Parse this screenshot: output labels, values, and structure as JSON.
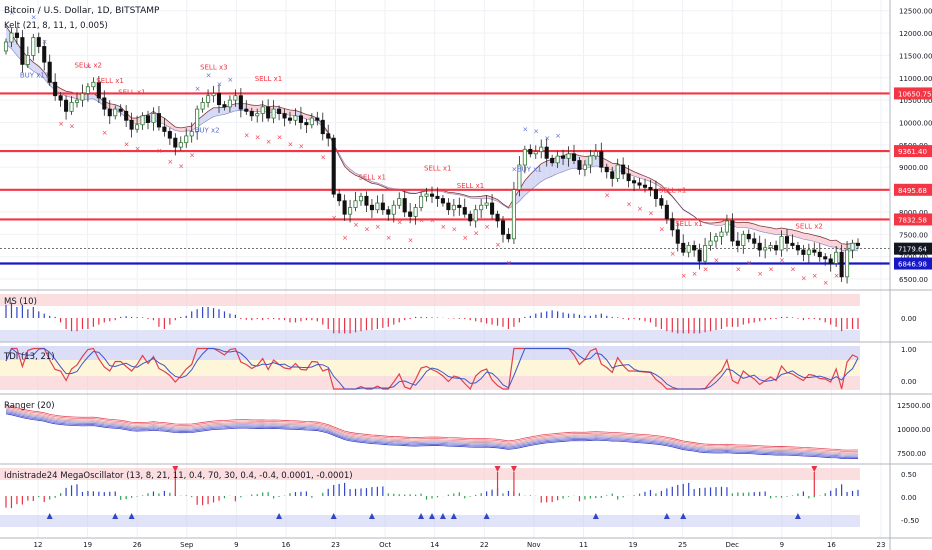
{
  "header": {
    "symbol_title": "Bitcoin / U.S. Dollar, 1D, BITSTAMP",
    "kelt_label": "Kelt (21, 8, 11, 1, 0.005)"
  },
  "theme": {
    "bull": "#2e7d32",
    "bear": "#111111",
    "level_red": "#f23645",
    "level_blue": "#1717c8",
    "buy_color": "#5b6bd6",
    "sell_color": "#f23645"
  },
  "chart_data": [
    {
      "type": "candlestick",
      "title": "Bitcoin / U.S. Dollar, 1D, BITSTAMP",
      "y_ticks": [
        "12500.00",
        "12000.00",
        "11500.00",
        "11000.00",
        "10500.00",
        "10000.00",
        "9500.00",
        "9000.00",
        "8500.00",
        "8000.00",
        "7500.00",
        "7000.00",
        "6500.00"
      ],
      "ylim": [
        6300,
        12650
      ],
      "x_ticks": [
        "12",
        "19",
        "26",
        "Sep",
        "9",
        "16",
        "23",
        "Oct",
        "14",
        "22",
        "Nov",
        "11",
        "19",
        "25",
        "Dec",
        "9",
        "16",
        "23"
      ],
      "horizontal_levels": [
        {
          "label": "10650.75",
          "value": 10650.75,
          "color": "red"
        },
        {
          "label": "9361.40",
          "value": 9361.4,
          "color": "red"
        },
        {
          "label": "8495.68",
          "value": 8495.68,
          "color": "red"
        },
        {
          "label": "7832.58",
          "value": 7832.58,
          "color": "red"
        },
        {
          "label": "6846.98",
          "value": 6846.98,
          "color": "blue"
        }
      ],
      "last_price": "7179.64",
      "close": [
        11800,
        12000,
        11900,
        11300,
        11500,
        11900,
        11700,
        11350,
        10900,
        10600,
        10500,
        10250,
        10450,
        10500,
        10650,
        10800,
        10900,
        10550,
        10300,
        10150,
        10300,
        10250,
        10050,
        9850,
        9950,
        10150,
        10000,
        10200,
        9900,
        9800,
        9650,
        9450,
        9550,
        9700,
        9800,
        10300,
        10450,
        10600,
        10650,
        10400,
        10350,
        10500,
        10600,
        10300,
        10250,
        10150,
        10200,
        10350,
        10100,
        10300,
        10200,
        10100,
        10050,
        10150,
        10000,
        9950,
        10100,
        10050,
        9750,
        9650,
        8400,
        8250,
        7950,
        8100,
        8250,
        8350,
        8150,
        8050,
        8200,
        8050,
        7950,
        8150,
        8300,
        8000,
        7900,
        8100,
        8350,
        8400,
        8350,
        8300,
        8200,
        8050,
        8150,
        8100,
        7950,
        7800,
        8050,
        8150,
        8200,
        7950,
        7800,
        7500,
        7400,
        8500,
        9050,
        9400,
        9300,
        9350,
        9450,
        9200,
        9100,
        9250,
        9200,
        9300,
        9150,
        8950,
        9050,
        9250,
        9350,
        9000,
        8900,
        8750,
        9050,
        8850,
        8700,
        8650,
        8600,
        8550,
        8500,
        8300,
        8150,
        7850,
        7600,
        7300,
        7100,
        7250,
        7150,
        6900,
        7250,
        7350,
        7450,
        7550,
        7800,
        7350,
        7250,
        7500,
        7400,
        7300,
        7150,
        7200,
        7250,
        7150,
        7450,
        7300,
        7250,
        7150,
        7050,
        7150,
        7100,
        7000,
        6950,
        6850,
        7100,
        6550,
        7150,
        7300,
        7250
      ],
      "bands_top": [
        12150,
        11980,
        11780,
        11600,
        11460,
        11350,
        11260,
        11130,
        10950,
        10830,
        10760,
        10700,
        10680,
        10640,
        10620,
        10640,
        10650,
        10560,
        10470,
        10420,
        10400,
        10350,
        10220,
        10100,
        10100,
        10150,
        10170,
        10250,
        10160,
        10100,
        10000,
        9900,
        9880,
        9900,
        9920,
        10050,
        10150,
        10250,
        10330,
        10330,
        10340,
        10380,
        10420,
        10420,
        10420,
        10390,
        10380,
        10400,
        10350,
        10370,
        10350,
        10310,
        10280,
        10270,
        10230,
        10180,
        10150,
        10100,
        9950,
        9780,
        9500,
        9250,
        9020,
        8900,
        8820,
        8770,
        8700,
        8640,
        8620,
        8570,
        8520,
        8500,
        8500,
        8450,
        8410,
        8410,
        8450,
        8480,
        8500,
        8500,
        8480,
        8440,
        8430,
        8410,
        8380,
        8340,
        8340,
        8350,
        8370,
        8330,
        8280,
        8180,
        8100,
        8300,
        8500,
        8700,
        8840,
        8960,
        9080,
        9140,
        9180,
        9230,
        9260,
        9300,
        9300,
        9260,
        9240,
        9250,
        9270,
        9220,
        9160,
        9090,
        9080,
        9020,
        8960,
        8900,
        8850,
        8800,
        8750,
        8680,
        8600,
        8480,
        8350,
        8200,
        8050,
        7980,
        7900,
        7800,
        7760,
        7750,
        7760,
        7780,
        7840,
        7790,
        7760,
        7770,
        7760,
        7730,
        7690,
        7670,
        7650,
        7620,
        7640,
        7620,
        7600,
        7570,
        7530,
        7510,
        7480,
        7450,
        7410,
        7360,
        7370,
        7290,
        7280,
        7300,
        7300
      ],
      "bands_mid": [
        11750,
        11650,
        11500,
        11360,
        11240,
        11150,
        11080,
        10980,
        10830,
        10720,
        10650,
        10590,
        10560,
        10530,
        10510,
        10520,
        10530,
        10460,
        10370,
        10300,
        10260,
        10210,
        10110,
        10000,
        9970,
        9990,
        10000,
        10060,
        10000,
        9960,
        9890,
        9820,
        9800,
        9810,
        9820,
        9900,
        9980,
        10060,
        10130,
        10160,
        10180,
        10220,
        10260,
        10270,
        10270,
        10250,
        10240,
        10250,
        10220,
        10230,
        10220,
        10190,
        10160,
        10150,
        10120,
        10080,
        10060,
        10020,
        9900,
        9760,
        9520,
        9300,
        9080,
        8960,
        8870,
        8810,
        8740,
        8680,
        8650,
        8600,
        8550,
        8520,
        8510,
        8470,
        8430,
        8420,
        8440,
        8460,
        8470,
        8470,
        8450,
        8410,
        8400,
        8380,
        8350,
        8310,
        8300,
        8300,
        8310,
        8280,
        8240,
        8160,
        8080,
        8140,
        8240,
        8370,
        8480,
        8580,
        8680,
        8750,
        8800,
        8860,
        8900,
        8950,
        8980,
        8970,
        8970,
        9000,
        9030,
        9010,
        8980,
        8930,
        8930,
        8890,
        8850,
        8800,
        8760,
        8720,
        8680,
        8620,
        8550,
        8450,
        8340,
        8200,
        8060,
        7980,
        7900,
        7800,
        7750,
        7720,
        7700,
        7700,
        7730,
        7690,
        7650,
        7650,
        7640,
        7610,
        7570,
        7540,
        7520,
        7490,
        7500,
        7480,
        7460,
        7430,
        7390,
        7370,
        7340,
        7300,
        7260,
        7220,
        7210,
        7140,
        7120,
        7130,
        7130
      ],
      "buy_labels": [
        "BUY x11",
        "BUY x2",
        "BUY x1"
      ],
      "sell_labels": [
        "SELL x2",
        "SELL x1",
        "SELL x1",
        "SELL x3",
        "SELL x1",
        "SELL x1",
        "SELL x1",
        "SELL x1",
        "SELL x1",
        "SELL x1",
        "SELL x2"
      ]
    },
    {
      "type": "bar",
      "title": "MS (10)",
      "y_ticks": [
        "0.00"
      ],
      "ylim": [
        -1,
        1
      ],
      "values": [
        0.6,
        0.7,
        0.5,
        0.6,
        0.4,
        0.5,
        0.3,
        0.2,
        0.1,
        0.05,
        -0.2,
        -0.5,
        -0.6,
        -0.6,
        -0.5,
        -0.5,
        -0.4,
        -0.3,
        -0.2,
        -0.15,
        -0.1,
        0.05,
        0.08,
        0.05,
        0.04,
        0.03,
        -0.05,
        -0.1,
        -0.4,
        -0.5,
        -0.3,
        -0.1,
        0.05,
        0.1,
        0.3,
        0.4,
        0.5,
        0.5,
        0.45,
        0.4,
        0.3,
        0.2,
        0.15,
        -0.05,
        -0.08,
        -0.1,
        -0.05,
        -0.1,
        -0.05,
        -0.05,
        -0.08,
        -0.1,
        -0.2,
        -0.2,
        -0.15,
        -0.1,
        -0.1,
        -0.15,
        -0.3,
        -0.5,
        -0.7,
        -0.7,
        -0.7,
        -0.7,
        -0.65,
        -0.6,
        -0.55,
        -0.55,
        -0.5,
        -0.45,
        -0.4,
        -0.3,
        -0.2,
        -0.1,
        -0.05,
        0.05,
        0.05,
        0.04,
        0.03,
        0.02,
        0.01,
        -0.02,
        -0.03,
        -0.04,
        -0.05,
        -0.1,
        -0.15,
        -0.2,
        -0.25,
        -0.3,
        -0.35,
        -0.4,
        -0.5,
        -0.4,
        -0.2,
        0.05,
        0.1,
        0.2,
        0.25,
        0.3,
        0.35,
        0.3,
        0.25,
        0.2,
        0.2,
        0.15,
        0.1,
        0.1,
        0.15,
        0.2,
        0.1,
        0.05,
        0.03,
        -0.05,
        -0.08,
        -0.05,
        -0.1,
        -0.15,
        -0.2,
        -0.4,
        -0.5,
        -0.6,
        -0.65,
        -0.7,
        -0.7,
        -0.7,
        -0.7,
        -0.7,
        -0.65,
        -0.6,
        -0.55,
        -0.5,
        -0.4,
        -0.4,
        -0.4,
        -0.3,
        -0.25,
        -0.2,
        -0.15,
        -0.1,
        -0.05,
        -0.05,
        0.05,
        0.05,
        0.03,
        -0.03,
        -0.1,
        -0.05,
        -0.05,
        -0.1,
        -0.2,
        -0.3,
        -0.4,
        -0.6,
        -0.5,
        -0.5,
        -0.5
      ]
    },
    {
      "type": "line",
      "title": "TDI (13, 21)",
      "y_ticks": [
        "1.00",
        "0.00"
      ],
      "ylim": [
        -0.4,
        1.2
      ]
    },
    {
      "type": "line",
      "title": "Ranger (20)",
      "y_ticks": [
        "12500.00",
        "10000.00",
        "7500.00"
      ],
      "ylim": [
        6800,
        13000
      ]
    },
    {
      "type": "bar",
      "title": "Idnistrade24 MegaOscillator (13, 8, 21, 11, 0.4, 70, 30, 0.4, -0.4, 0.0001, -0.0001)",
      "y_ticks": [
        "0.50",
        "0.00",
        "-0.50"
      ],
      "ylim": [
        -0.8,
        0.8
      ]
    }
  ]
}
